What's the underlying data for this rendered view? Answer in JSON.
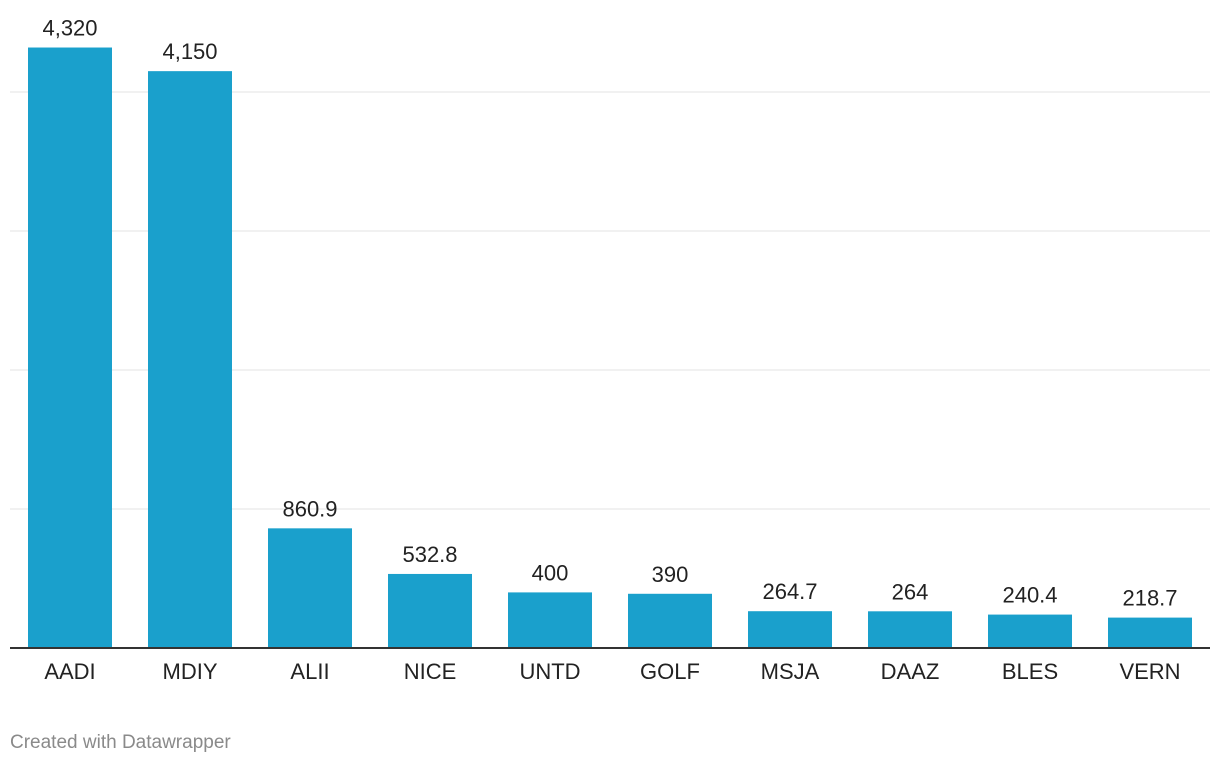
{
  "chart_data": {
    "type": "bar",
    "categories": [
      "AADI",
      "MDIY",
      "ALII",
      "NICE",
      "UNTD",
      "GOLF",
      "MSJA",
      "DAAZ",
      "BLES",
      "VERN"
    ],
    "values": [
      4320,
      4150,
      860.9,
      532.8,
      400,
      390,
      264.7,
      264,
      240.4,
      218.7
    ],
    "value_labels": [
      "4,320",
      "4,150",
      "860.9",
      "532.8",
      "400",
      "390",
      "264.7",
      "264",
      "240.4",
      "218.7"
    ],
    "gridlines": [
      1000,
      2000,
      3000,
      4000
    ],
    "ylim": [
      0,
      4000
    ],
    "grid": true,
    "y_tick_labels_visible": false,
    "bar_color": "#1aa0cc"
  },
  "footer": {
    "credit": "Created with Datawrapper"
  }
}
